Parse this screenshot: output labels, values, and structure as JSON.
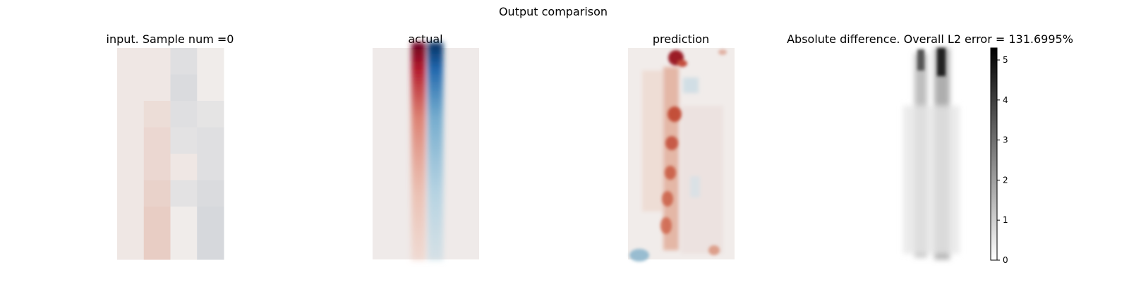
{
  "figure": {
    "suptitle": "Output comparison"
  },
  "chart_data": [
    {
      "type": "heatmap",
      "title": "input. Sample num =0",
      "colormap": "diverging red-white-blue",
      "rows": 8,
      "cols": 4,
      "values": [
        [
          0.02,
          0.02,
          -0.08,
          0.0
        ],
        [
          0.02,
          0.02,
          -0.1,
          0.0
        ],
        [
          0.02,
          0.06,
          -0.08,
          -0.05
        ],
        [
          0.02,
          0.08,
          -0.06,
          -0.08
        ],
        [
          0.02,
          0.08,
          0.02,
          -0.08
        ],
        [
          0.02,
          0.1,
          -0.06,
          -0.1
        ],
        [
          0.02,
          0.12,
          0.0,
          -0.12
        ],
        [
          0.02,
          0.12,
          0.0,
          -0.12
        ]
      ]
    },
    {
      "type": "heatmap",
      "title": "actual",
      "colormap": "diverging red-white-blue",
      "description": "Two adjacent vertical streaks: red on the left, blue on the right, strongest at the top and fading downward."
    },
    {
      "type": "heatmap",
      "title": "prediction",
      "colormap": "diverging red-white-blue",
      "description": "Blotchy red column of blobs along the left-center; faint blue patches near the top-right and a blue patch at the bottom-left."
    },
    {
      "type": "heatmap",
      "title": "Absolute difference. Overall L2 error = 131.6995%",
      "colormap": "grayscale (white=0, black=max)",
      "colorbar": {
        "min": 0,
        "max": 5.3,
        "ticks": [
          "0",
          "1",
          "2",
          "3",
          "4",
          "5"
        ]
      }
    }
  ]
}
